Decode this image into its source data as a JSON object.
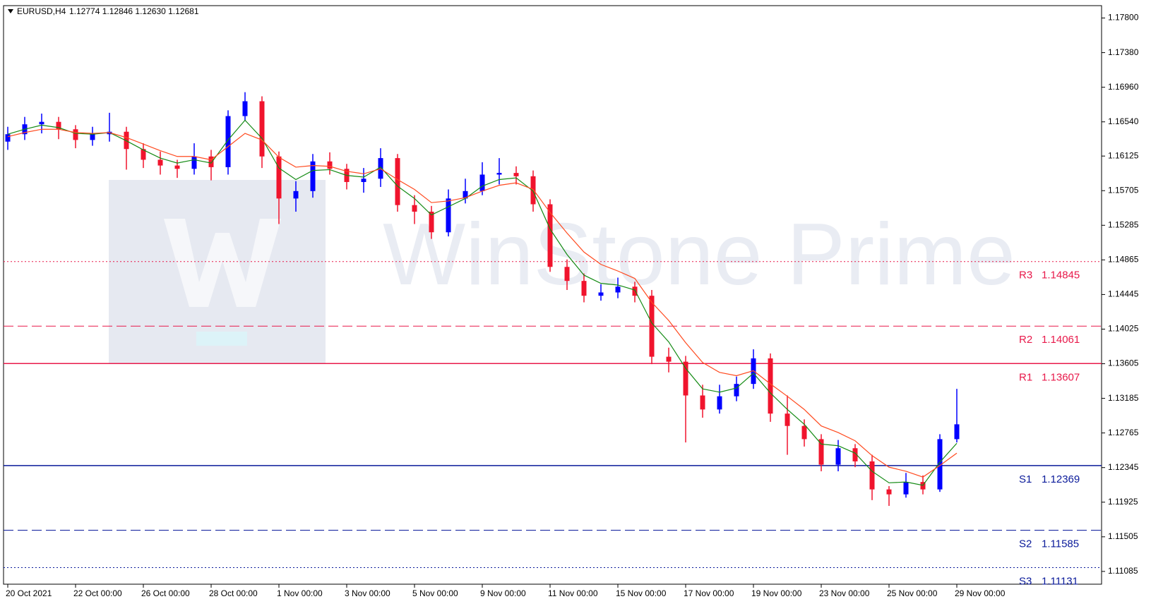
{
  "chart_data": {
    "type": "candlestick",
    "symbol": "EURUSD,H4",
    "quote": "1.12774 1.12846 1.12630 1.12681",
    "watermark": "WinStone Prime",
    "up_color": "#0000ff",
    "down_color": "#f0142d",
    "categories": [
      "20 Oct 2021",
      null,
      null,
      null,
      "22 Oct 00:00",
      null,
      null,
      null,
      "26 Oct 00:00",
      null,
      null,
      null,
      "28 Oct 00:00",
      null,
      null,
      null,
      "1 Nov 00:00",
      null,
      null,
      null,
      "3 Nov 00:00",
      null,
      null,
      null,
      "5 Nov 00:00",
      null,
      null,
      null,
      "9 Nov 00:00",
      null,
      null,
      null,
      "11 Nov 00:00",
      null,
      null,
      null,
      "15 Nov 00:00",
      null,
      null,
      null,
      "17 Nov 00:00",
      null,
      null,
      null,
      "19 Nov 00:00",
      null,
      null,
      null,
      "23 Nov 00:00",
      null,
      null,
      null,
      "25 Nov 00:00",
      null,
      null,
      null,
      "29 Nov 00:00"
    ],
    "open": [
      1.163,
      1.1639,
      1.1651,
      1.1654,
      1.1645,
      1.1632,
      1.1639,
      1.1642,
      1.1621,
      1.1608,
      1.1601,
      1.1597,
      1.1612,
      1.1599,
      1.1661,
      1.1679,
      1.1612,
      1.1561,
      1.157,
      1.1606,
      1.1597,
      1.1581,
      1.1585,
      1.161,
      1.1553,
      1.1545,
      1.152,
      1.1561,
      1.157,
      1.159,
      1.1592,
      1.1588,
      1.1554,
      1.1478,
      1.1461,
      1.1443,
      1.1447,
      1.1454,
      1.1443,
      1.1369,
      1.1363,
      1.1322,
      1.1305,
      1.1321,
      1.1336,
      1.1367,
      1.13,
      1.1285,
      1.1269,
      1.1238,
      1.1258,
      1.1242,
      1.1208,
      1.1202,
      1.1217,
      1.1208,
      1.1269
    ],
    "high": [
      1.1648,
      1.166,
      1.1664,
      1.166,
      1.165,
      1.1648,
      1.1665,
      1.1648,
      1.1628,
      1.1618,
      1.1608,
      1.1628,
      1.162,
      1.1668,
      1.169,
      1.1685,
      1.1618,
      1.1582,
      1.1615,
      1.1617,
      1.1603,
      1.1598,
      1.1622,
      1.1615,
      1.1565,
      1.1552,
      1.1572,
      1.1585,
      1.1605,
      1.161,
      1.16,
      1.1595,
      1.156,
      1.1487,
      1.147,
      1.1457,
      1.1465,
      1.146,
      1.145,
      1.138,
      1.137,
      1.1335,
      1.1335,
      1.1345,
      1.1378,
      1.1373,
      1.1322,
      1.1293,
      1.1275,
      1.1268,
      1.1263,
      1.125,
      1.1212,
      1.1228,
      1.1225,
      1.1275,
      1.133
    ],
    "low": [
      1.162,
      1.1632,
      1.164,
      1.1633,
      1.1622,
      1.1625,
      1.163,
      1.1596,
      1.1598,
      1.159,
      1.1586,
      1.159,
      1.1583,
      1.159,
      1.1655,
      1.1598,
      1.153,
      1.1545,
      1.1562,
      1.159,
      1.1572,
      1.1568,
      1.1575,
      1.1545,
      1.153,
      1.1512,
      1.1515,
      1.1555,
      1.1565,
      1.1578,
      1.1578,
      1.1545,
      1.1472,
      1.145,
      1.1435,
      1.1437,
      1.144,
      1.1435,
      1.136,
      1.135,
      1.1265,
      1.1295,
      1.13,
      1.1315,
      1.133,
      1.129,
      1.125,
      1.126,
      1.123,
      1.123,
      1.1235,
      1.1195,
      1.1188,
      1.1198,
      1.1202,
      1.1205,
      1.1265
    ],
    "close": [
      1.1639,
      1.1651,
      1.1654,
      1.1645,
      1.1632,
      1.1639,
      1.1642,
      1.1621,
      1.1608,
      1.1601,
      1.1597,
      1.1612,
      1.1599,
      1.1661,
      1.1679,
      1.1612,
      1.1561,
      1.157,
      1.1606,
      1.1597,
      1.1581,
      1.1585,
      1.161,
      1.1553,
      1.1545,
      1.152,
      1.1561,
      1.157,
      1.159,
      1.1592,
      1.1588,
      1.1554,
      1.1478,
      1.1461,
      1.1443,
      1.1447,
      1.1454,
      1.1443,
      1.1369,
      1.1363,
      1.1322,
      1.1305,
      1.1321,
      1.1336,
      1.1367,
      1.13,
      1.1285,
      1.1269,
      1.1238,
      1.1258,
      1.1242,
      1.1208,
      1.1202,
      1.1217,
      1.1208,
      1.1269,
      1.1287
    ],
    "lines": [
      {
        "color": "#138a13",
        "values": [
          1.1639,
          1.1645,
          1.165,
          1.1647,
          1.164,
          1.1639,
          1.1641,
          1.1631,
          1.162,
          1.161,
          1.1604,
          1.1608,
          1.1604,
          1.1632,
          1.1656,
          1.1634,
          1.1598,
          1.1584,
          1.1595,
          1.1596,
          1.1589,
          1.1587,
          1.1599,
          1.1576,
          1.1561,
          1.1541,
          1.1551,
          1.1561,
          1.1576,
          1.1584,
          1.1586,
          1.157,
          1.1524,
          1.1493,
          1.1468,
          1.1458,
          1.1456,
          1.145,
          1.141,
          1.1387,
          1.1355,
          1.133,
          1.1326,
          1.1331,
          1.1349,
          1.1325,
          1.1305,
          1.1287,
          1.1263,
          1.1261,
          1.1252,
          1.123,
          1.1216,
          1.1217,
          1.1213,
          1.1241,
          1.1264
        ]
      },
      {
        "color": "#ff4a1f",
        "values": [
          1.1636,
          1.1641,
          1.1645,
          1.1645,
          1.1641,
          1.164,
          1.1641,
          1.1635,
          1.1627,
          1.1619,
          1.1612,
          1.1612,
          1.1608,
          1.1624,
          1.164,
          1.1632,
          1.1611,
          1.1599,
          1.1601,
          1.16,
          1.1594,
          1.1591,
          1.1597,
          1.1584,
          1.1572,
          1.1556,
          1.1558,
          1.1562,
          1.157,
          1.1577,
          1.158,
          1.1572,
          1.1544,
          1.1519,
          1.1496,
          1.1481,
          1.1473,
          1.1464,
          1.1435,
          1.1413,
          1.1386,
          1.1362,
          1.135,
          1.1346,
          1.1352,
          1.1336,
          1.1321,
          1.1305,
          1.1285,
          1.1277,
          1.1267,
          1.1249,
          1.1235,
          1.123,
          1.1223,
          1.1237,
          1.1252
        ]
      }
    ],
    "levels": [
      {
        "name": "R3",
        "value": 1.14845,
        "color": "#e8194a",
        "style": "dotted"
      },
      {
        "name": "R2",
        "value": 1.14061,
        "color": "#e8194a",
        "style": "dashed"
      },
      {
        "name": "R1",
        "value": 1.13607,
        "color": "#e8194a",
        "style": "solid"
      },
      {
        "name": "S1",
        "value": 1.12369,
        "color": "#0a1a9a",
        "style": "solid"
      },
      {
        "name": "S2",
        "value": 1.11585,
        "color": "#0a1a9a",
        "style": "dashed"
      },
      {
        "name": "S3",
        "value": 1.11131,
        "color": "#0a1a9a",
        "style": "dotted"
      }
    ],
    "ylim": [
      1.1093,
      1.1795
    ],
    "yticks": [
      {
        "value": 1.178,
        "label": "1.17800"
      },
      {
        "value": 1.1738,
        "label": "1.17380"
      },
      {
        "value": 1.1696,
        "label": "1.16960"
      },
      {
        "value": 1.1654,
        "label": "1.16540"
      },
      1.16125,
      1.15705,
      1.15285,
      1.14865,
      1.14445,
      1.14025,
      1.13605,
      1.13185,
      1.12765,
      1.12345,
      1.11925,
      1.11505,
      1.11085
    ]
  }
}
